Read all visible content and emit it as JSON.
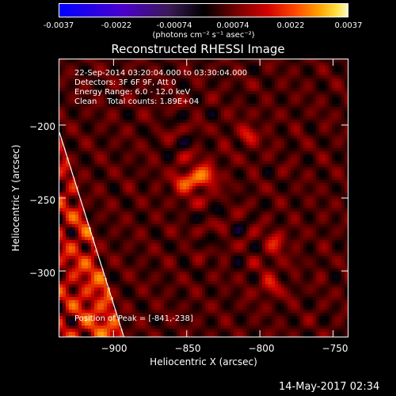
{
  "colorbar": {
    "ticks": [
      "-0.0037",
      "-0.0022",
      "-0.00074",
      "0.00074",
      "0.0022",
      "0.0037"
    ],
    "unit_label": "(photons cm⁻² s⁻¹ asec⁻²)"
  },
  "annotations": {
    "line1": "22-Sep-2014 03:20:04.000 to 03:30:04.000",
    "line2": "Detectors: 3F 6F 9F, Att 0",
    "line3": "Energy Range: 6.0 - 12.0 keV",
    "line4": "Clean    Total counts: 1.89E+04",
    "peak": "Position of Peak = [-841,-238]"
  },
  "footer": "14-May-2017 02:34",
  "chart_data": {
    "type": "heatmap",
    "title": "Reconstructed RHESSI Image",
    "xlabel": "Heliocentric X (arcsec)",
    "ylabel": "Heliocentric Y (arcsec)",
    "xlim": [
      -937,
      -740
    ],
    "ylim": [
      -345,
      -155
    ],
    "x_ticks": [
      -900,
      -850,
      -800,
      -750
    ],
    "y_ticks": [
      -200,
      -250,
      -300
    ],
    "x_tick_labels": [
      "−900",
      "−850",
      "−800",
      "−750"
    ],
    "y_tick_labels": [
      "−200",
      "−250",
      "−300"
    ],
    "colorbar_range": [
      -0.0037,
      0.0037
    ],
    "peak_position": [
      -841,
      -238
    ],
    "sources": [
      {
        "x": -843,
        "y": -237,
        "intensity": 1.0
      },
      {
        "x": -852,
        "y": -240,
        "intensity": 0.8
      },
      {
        "x": -836,
        "y": -233,
        "intensity": 0.7
      },
      {
        "x": -790,
        "y": -282,
        "intensity": 0.7
      },
      {
        "x": -793,
        "y": -309,
        "intensity": 0.65
      },
      {
        "x": -808,
        "y": -207,
        "intensity": 0.6
      }
    ],
    "limb_line": [
      [
        -937,
        -205
      ],
      [
        -893,
        -345
      ]
    ],
    "colormap": [
      "#0000ff",
      "#4b00cc",
      "#000000",
      "#d00000",
      "#ff8000",
      "#ffe040",
      "#ffffff"
    ]
  }
}
